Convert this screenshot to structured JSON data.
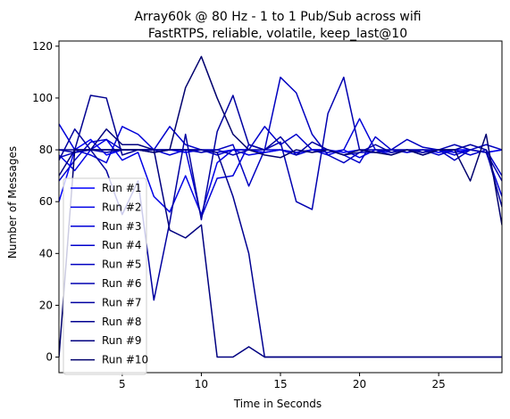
{
  "chart_data": {
    "type": "line",
    "title": "Array60k @ 80 Hz - 1 to 1 Pub/Sub across wifi",
    "subtitle": "FastRTPS, reliable, volatile, keep_last@10",
    "xlabel": "Time in Seconds",
    "ylabel": "Number of Messages",
    "xlim": [
      1,
      29
    ],
    "ylim": [
      -6,
      122
    ],
    "xticks": [
      5,
      10,
      15,
      20,
      25
    ],
    "yticks": [
      0,
      20,
      40,
      60,
      80,
      100,
      120
    ],
    "grid": false,
    "legend_position": "lower-left",
    "x": [
      1,
      2,
      3,
      4,
      5,
      6,
      7,
      8,
      9,
      10,
      11,
      12,
      13,
      14,
      15,
      16,
      17,
      18,
      19,
      20,
      21,
      22,
      23,
      24,
      25,
      26,
      27,
      28,
      29
    ],
    "series": [
      {
        "name": "Run #1",
        "color": "#0000ff",
        "values": [
          60,
          80,
          84,
          78,
          80,
          80,
          79,
          80,
          79,
          80,
          79,
          80,
          80,
          79,
          80,
          79,
          80,
          80,
          79,
          80,
          79,
          80,
          79,
          80,
          79,
          80,
          80,
          79,
          80
        ]
      },
      {
        "name": "Run #2",
        "color": "#0000e6",
        "values": [
          78,
          72,
          80,
          84,
          76,
          79,
          62,
          56,
          70,
          55,
          75,
          80,
          78,
          79,
          80,
          79,
          80,
          78,
          80,
          77,
          80,
          79,
          80,
          78,
          80,
          79,
          80,
          79,
          80
        ]
      },
      {
        "name": "Run #3",
        "color": "#0000d8",
        "values": [
          90,
          80,
          78,
          75,
          89,
          86,
          80,
          78,
          80,
          54,
          69,
          70,
          82,
          80,
          80,
          78,
          80,
          79,
          80,
          92,
          80,
          78,
          80,
          79,
          80,
          78,
          80,
          79,
          62
        ]
      },
      {
        "name": "Run #4",
        "color": "#0000cc",
        "values": [
          68,
          76,
          83,
          84,
          80,
          80,
          80,
          89,
          82,
          80,
          78,
          80,
          80,
          89,
          82,
          86,
          80,
          80,
          78,
          75,
          85,
          80,
          79,
          80,
          78,
          80,
          78,
          80,
          70
        ]
      },
      {
        "name": "Run #5",
        "color": "#0000c0",
        "values": [
          77,
          79,
          80,
          80,
          80,
          80,
          80,
          80,
          80,
          80,
          80,
          82,
          66,
          80,
          108,
          102,
          86,
          78,
          75,
          79,
          79,
          80,
          84,
          81,
          80,
          76,
          80,
          82,
          80
        ]
      },
      {
        "name": "Run #6",
        "color": "#0000b0",
        "values": [
          80,
          79,
          80,
          79,
          80,
          80,
          79,
          80,
          80,
          79,
          80,
          78,
          80,
          80,
          83,
          60,
          57,
          94,
          108,
          80,
          80,
          80,
          80,
          80,
          80,
          82,
          80,
          79,
          68
        ]
      },
      {
        "name": "Run #7",
        "color": "#0000a0",
        "values": [
          76,
          88,
          80,
          72,
          55,
          68,
          22,
          52,
          86,
          53,
          87,
          101,
          82,
          80,
          85,
          78,
          83,
          80,
          78,
          79,
          82,
          79,
          80,
          79,
          80,
          80,
          82,
          80,
          58
        ]
      },
      {
        "name": "Run #8",
        "color": "#000090",
        "values": [
          80,
          80,
          101,
          100,
          78,
          80,
          80,
          80,
          80,
          80,
          79,
          62,
          40,
          0,
          0,
          0,
          0,
          0,
          0,
          0,
          0,
          0,
          0,
          0,
          0,
          0,
          0,
          0,
          0
        ]
      },
      {
        "name": "Run #9",
        "color": "#000080",
        "values": [
          70,
          80,
          80,
          88,
          82,
          82,
          80,
          49,
          46,
          51,
          0,
          0,
          4,
          0,
          0,
          0,
          0,
          0,
          0,
          0,
          0,
          0,
          0,
          0,
          0,
          0,
          0,
          0,
          0
        ]
      },
      {
        "name": "Run #10",
        "color": "#00006e",
        "values": [
          0,
          80,
          80,
          80,
          80,
          80,
          79,
          80,
          104,
          116,
          100,
          86,
          80,
          78,
          77,
          80,
          79,
          80,
          78,
          80,
          79,
          78,
          80,
          78,
          80,
          80,
          68,
          86,
          51
        ]
      }
    ]
  }
}
